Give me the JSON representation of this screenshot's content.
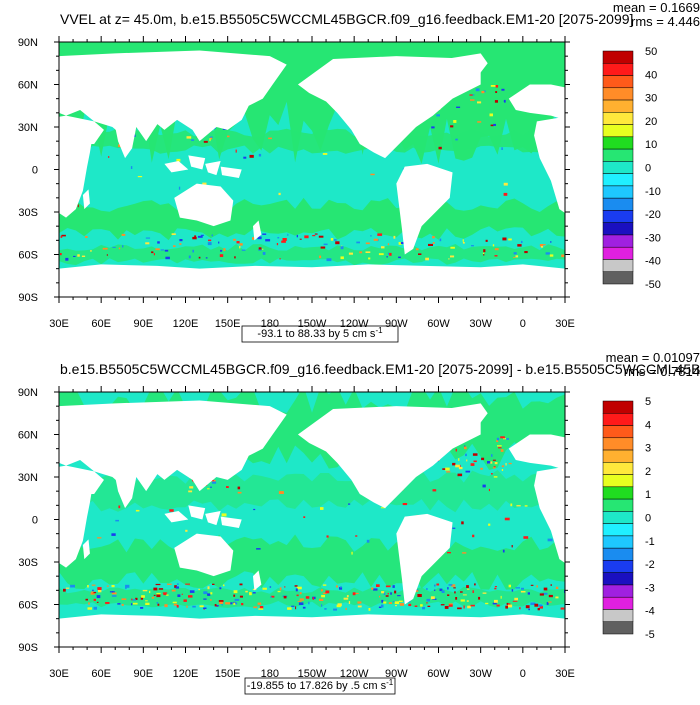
{
  "panels": [
    {
      "id": "top",
      "title": "VVEL at z=  45.0m, b.e15.B5505C5WCCML45BGCR.f09_g16.feedback.EM1-20 [2075-2099]",
      "mean_label": "mean = 0.1669",
      "rms_label": "rms = 4.446",
      "range_label": "-93.1 to 88.33 by 5 cm s",
      "range_exponent": "-1",
      "lat_labels": [
        "90N",
        "60N",
        "30N",
        "0",
        "30S",
        "60S",
        "90S"
      ],
      "lon_labels": [
        "30E",
        "60E",
        "90E",
        "120E",
        "150E",
        "180",
        "150W",
        "120W",
        "90W",
        "60W",
        "30W",
        "0",
        "30E"
      ],
      "colorbar_labels": [
        "50",
        "40",
        "30",
        "20",
        "10",
        "0",
        "-10",
        "-20",
        "-30",
        "-40",
        "-50"
      ],
      "colorbar_colors": [
        "#c00000",
        "#ff1a1a",
        "#ff5a1a",
        "#ff8c28",
        "#ffb030",
        "#ffe83c",
        "#e8ff20",
        "#20dc20",
        "#26e673",
        "#1ee8c8",
        "#20f0ff",
        "#1ec8ff",
        "#1a8cf0",
        "#1a3cf0",
        "#1a10c0",
        "#a020e0",
        "#e020e0",
        "#c8c8c8",
        "#606060"
      ]
    },
    {
      "id": "bottom",
      "title": "b.e15.B5505C5WCCML45BGCR.f09_g16.feedback.EM1-20 [2075-2099] - b.e15.B5505C5WCCML45BG",
      "mean_label": "mean = 0.01097",
      "rms_label": "rms = 0.7814",
      "range_label": "-19.855 to 17.826 by .5 cm s",
      "range_exponent": "-1",
      "lat_labels": [
        "90N",
        "60N",
        "30N",
        "0",
        "30S",
        "60S",
        "90S"
      ],
      "lon_labels": [
        "30E",
        "60E",
        "90E",
        "120E",
        "150E",
        "180",
        "150W",
        "120W",
        "90W",
        "60W",
        "30W",
        "0",
        "30E"
      ],
      "colorbar_labels": [
        "5",
        "4",
        "3",
        "2",
        "1",
        "0",
        "-1",
        "-2",
        "-3",
        "-4",
        "-5"
      ],
      "colorbar_colors": [
        "#c00000",
        "#ff1a1a",
        "#ff5a1a",
        "#ff8c28",
        "#ffb030",
        "#ffe83c",
        "#e8ff20",
        "#20dc20",
        "#26e673",
        "#1ee8c8",
        "#20f0ff",
        "#1ec8ff",
        "#1a8cf0",
        "#1a3cf0",
        "#1a10c0",
        "#a020e0",
        "#e020e0",
        "#c8c8c8",
        "#606060"
      ]
    }
  ],
  "colors": {
    "ocean_background": "#1ee8c8",
    "ocean_band": "#26e673",
    "land": "#ffffff",
    "positive_extreme": "#c00000",
    "negative_extreme": "#1a10c0"
  }
}
